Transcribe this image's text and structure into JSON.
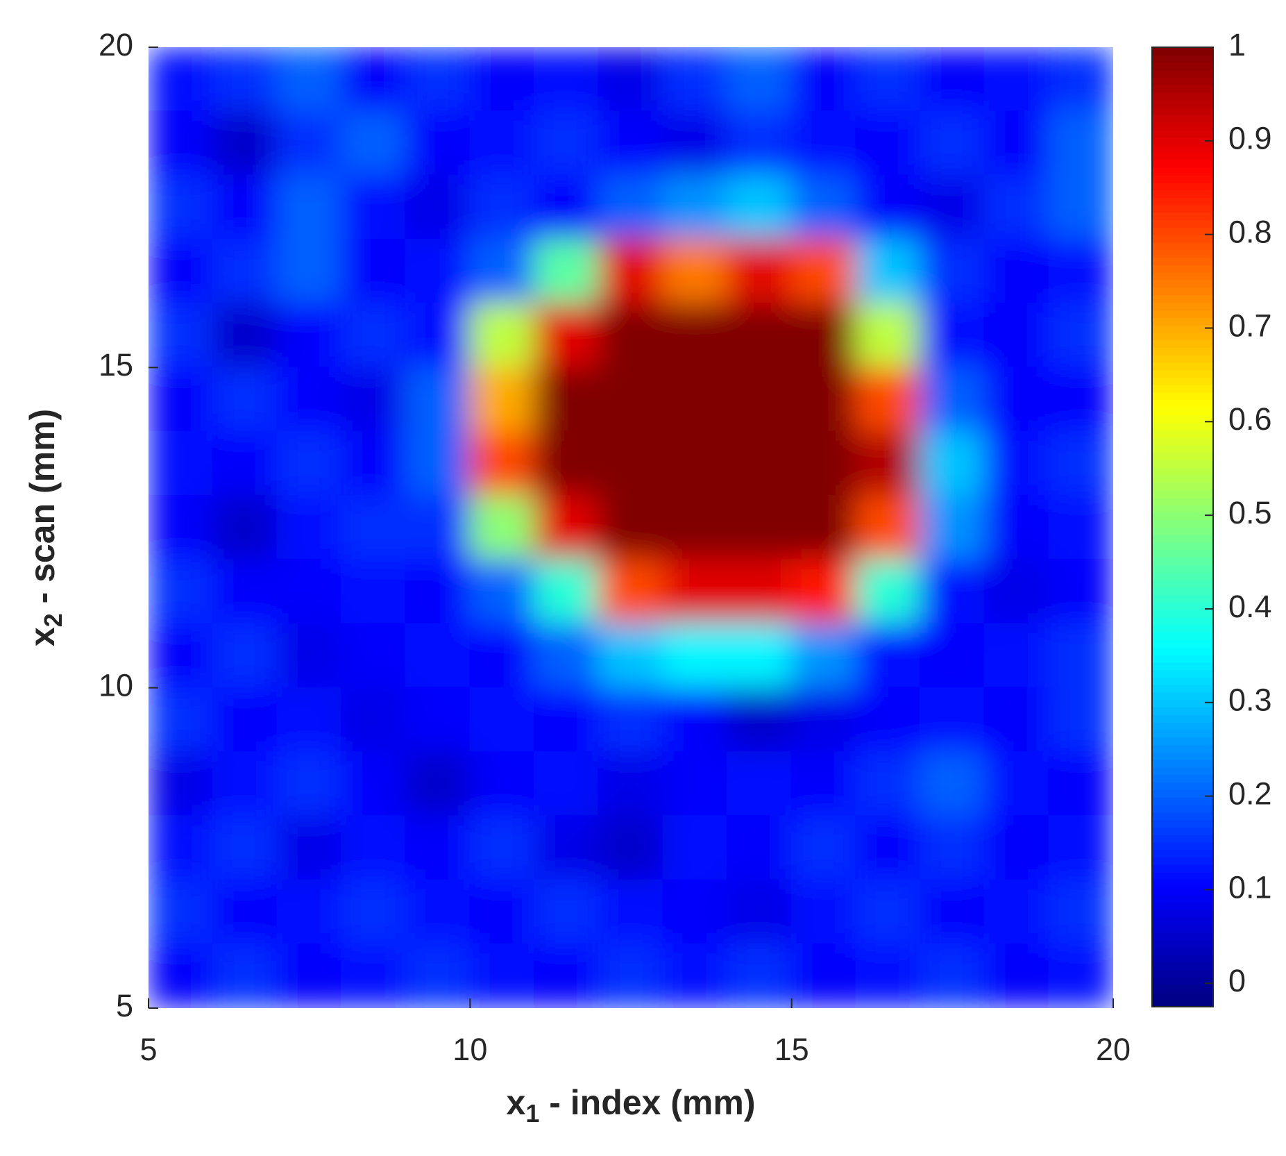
{
  "chart_data": {
    "type": "heatmap",
    "colormap": "jet",
    "xlabel": [
      "x",
      "1",
      " - index (mm)"
    ],
    "ylabel": [
      "x",
      "2",
      " - scan (mm)"
    ],
    "x": [
      5.5,
      6.5,
      7.5,
      8.5,
      9.5,
      10.5,
      11.5,
      12.5,
      13.5,
      14.5,
      15.5,
      16.5,
      17.5,
      18.5,
      19.5
    ],
    "y": [
      19.5,
      18.5,
      17.5,
      16.5,
      15.5,
      14.5,
      13.5,
      12.5,
      11.5,
      10.5,
      9.5,
      8.5,
      7.5,
      6.5,
      5.5
    ],
    "z": [
      [
        0.12,
        0.15,
        0.2,
        0.1,
        0.15,
        0.1,
        0.12,
        0.08,
        0.15,
        0.2,
        0.1,
        0.15,
        0.1,
        0.12,
        0.15
      ],
      [
        0.1,
        0.05,
        0.15,
        0.2,
        0.1,
        0.12,
        0.15,
        0.1,
        0.08,
        0.15,
        0.12,
        0.1,
        0.15,
        0.1,
        0.2
      ],
      [
        0.15,
        0.1,
        0.2,
        0.12,
        0.08,
        0.15,
        0.1,
        0.2,
        0.25,
        0.3,
        0.2,
        0.1,
        0.08,
        0.15,
        0.2
      ],
      [
        0.1,
        0.15,
        0.2,
        0.1,
        0.12,
        0.2,
        0.45,
        0.9,
        0.75,
        0.9,
        0.8,
        0.3,
        0.15,
        0.1,
        0.12
      ],
      [
        0.15,
        0.05,
        0.1,
        0.15,
        0.12,
        0.55,
        0.9,
        1,
        1,
        1,
        1,
        0.55,
        0.12,
        0.1,
        0.15
      ],
      [
        0.1,
        0.15,
        0.1,
        0.08,
        0.2,
        0.7,
        1,
        1,
        1,
        1,
        1,
        0.8,
        0.2,
        0.1,
        0.1
      ],
      [
        0.12,
        0.1,
        0.15,
        0.1,
        0.2,
        0.8,
        1,
        1,
        1,
        1,
        1,
        0.95,
        0.3,
        0.12,
        0.15
      ],
      [
        0.1,
        0.05,
        0.12,
        0.15,
        0.15,
        0.5,
        0.9,
        1,
        1,
        1,
        1,
        0.8,
        0.25,
        0.1,
        0.12
      ],
      [
        0.15,
        0.1,
        0.1,
        0.12,
        0.1,
        0.2,
        0.4,
        0.8,
        0.9,
        0.9,
        0.85,
        0.4,
        0.12,
        0.08,
        0.1
      ],
      [
        0.1,
        0.15,
        0.08,
        0.1,
        0.12,
        0.1,
        0.2,
        0.3,
        0.35,
        0.35,
        0.25,
        0.12,
        0.1,
        0.12,
        0.15
      ],
      [
        0.15,
        0.1,
        0.12,
        0.08,
        0.1,
        0.12,
        0.1,
        0.15,
        0.1,
        0.05,
        0.08,
        0.1,
        0.12,
        0.1,
        0.15
      ],
      [
        0.08,
        0.12,
        0.15,
        0.1,
        0.05,
        0.1,
        0.12,
        0.08,
        0.1,
        0.12,
        0.1,
        0.15,
        0.2,
        0.12,
        0.1
      ],
      [
        0.12,
        0.15,
        0.08,
        0.12,
        0.1,
        0.15,
        0.08,
        0.05,
        0.12,
        0.1,
        0.15,
        0.1,
        0.15,
        0.1,
        0.12
      ],
      [
        0.15,
        0.1,
        0.12,
        0.15,
        0.12,
        0.1,
        0.15,
        0.12,
        0.1,
        0.08,
        0.12,
        0.15,
        0.1,
        0.12,
        0.15
      ],
      [
        0.1,
        0.15,
        0.1,
        0.12,
        0.15,
        0.12,
        0.1,
        0.15,
        0.12,
        0.15,
        0.1,
        0.12,
        0.15,
        0.1,
        0.12
      ]
    ],
    "xlim": [
      5,
      20
    ],
    "ylim": [
      5,
      20
    ],
    "xticks": [
      5,
      10,
      15,
      20
    ],
    "yticks": [
      5,
      10,
      15,
      20
    ],
    "clim": [
      -0.025,
      1
    ],
    "cticks": [
      0,
      0.1,
      0.2,
      0.3,
      0.4,
      0.5,
      0.6,
      0.7,
      0.8,
      0.9,
      1
    ]
  }
}
